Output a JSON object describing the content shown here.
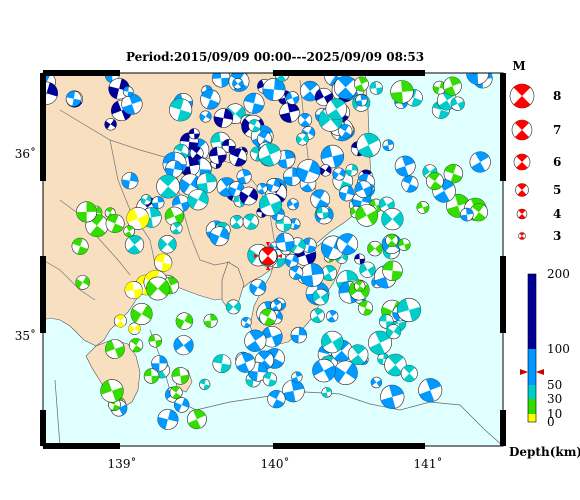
{
  "map": {
    "title": "Period:2015/09/09 00:00---2025/09/09 08:53",
    "lat_ticks": [
      "36˚",
      "35˚"
    ],
    "lon_ticks": [
      "139˚",
      "140˚",
      "141˚"
    ],
    "extent": {
      "lon_min": 138.45,
      "lon_max": 141.5,
      "lat_min": 34.4,
      "lat_max": 36.4
    },
    "colors": {
      "land": "#f7dfc0",
      "sea": "#e0ffff",
      "frame": "#000000"
    },
    "mainshock": {
      "lon": 139.95,
      "lat": 35.47,
      "color": "#ff0000"
    }
  },
  "magnitude_legend": {
    "title": "M",
    "items": [
      {
        "m": "8",
        "r": 12
      },
      {
        "m": "7",
        "r": 10
      },
      {
        "m": "6",
        "r": 8
      },
      {
        "m": "5",
        "r": 6.5
      },
      {
        "m": "4",
        "r": 5
      },
      {
        "m": "3",
        "r": 3.5
      }
    ],
    "color": "#ff0000"
  },
  "depth_legend": {
    "title": "Depth(km)",
    "ticks": [
      "200",
      "100",
      "50",
      "30",
      "10",
      "0"
    ],
    "bands": [
      {
        "from": 0,
        "to": 10,
        "color": "#ffff00"
      },
      {
        "from": 10,
        "to": 30,
        "color": "#33dd00"
      },
      {
        "from": 30,
        "to": 50,
        "color": "#00cccc"
      },
      {
        "from": 50,
        "to": 100,
        "color": "#0099ff"
      },
      {
        "from": 100,
        "to": 200,
        "color": "#000099"
      }
    ],
    "marker_depth": 68
  }
}
